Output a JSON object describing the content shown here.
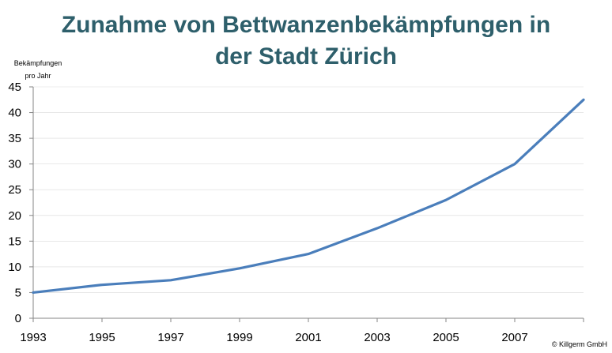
{
  "title_lines": [
    "Zunahme von Bettwanzenbekämpfungen in",
    "der Stadt Zürich"
  ],
  "ylabel_lines": [
    "Bekämpfungen",
    "pro Jahr"
  ],
  "credit": "© Killgerm GmbH",
  "colors": {
    "line": "#4a7ebb",
    "title": "#2e5f6b",
    "grid": "#d9d9d9",
    "axis": "#868686"
  },
  "chart_data": {
    "type": "line",
    "title": "Zunahme von Bettwanzenbekämpfungen in der Stadt Zürich",
    "ylabel": "Bekämpfungen pro Jahr",
    "xlabel": "",
    "x_ticks": [
      "1993",
      "1995",
      "1997",
      "1999",
      "2001",
      "2003",
      "2005",
      "2007"
    ],
    "y_ticks": [
      0,
      5,
      10,
      15,
      20,
      25,
      30,
      35,
      40,
      45
    ],
    "ylim": [
      0,
      45
    ],
    "xlim": [
      1993,
      2009
    ],
    "grid": true,
    "series": [
      {
        "x": [
          1993,
          1995,
          1997,
          1999,
          2001,
          2003,
          2005,
          2007,
          2009
        ],
        "values": [
          5,
          6.5,
          7.4,
          9.7,
          12.5,
          17.5,
          23,
          30,
          42.5
        ]
      }
    ]
  }
}
